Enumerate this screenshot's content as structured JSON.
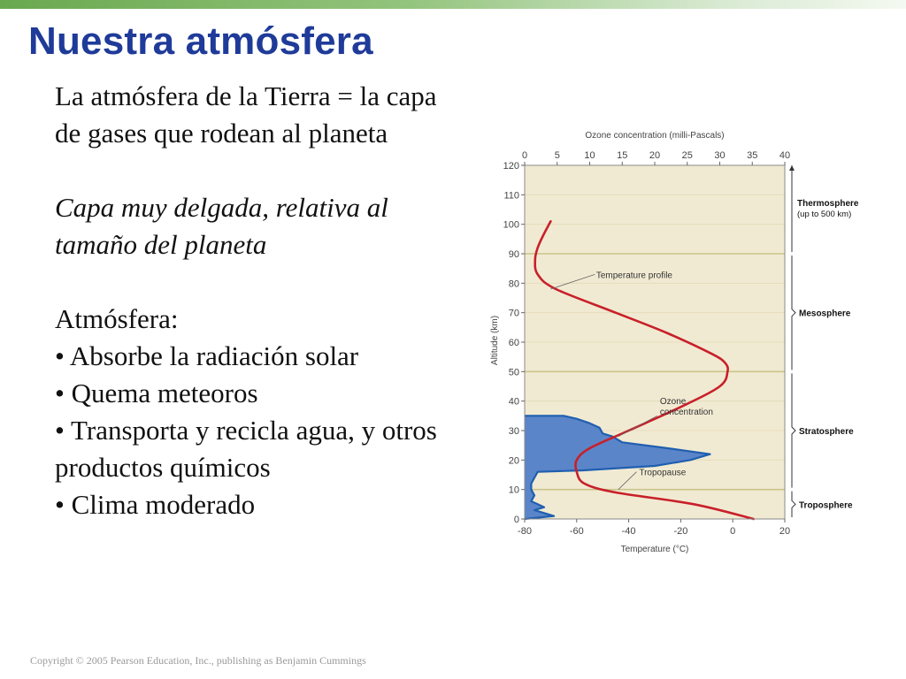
{
  "slide": {
    "title": "Nuestra atmósfera",
    "paragraph1": [
      "La atmósfera de la Tierra = la capa",
      "de gases que rodean al planeta"
    ],
    "paragraph2": [
      "Capa muy delgada, relativa al",
      "tamaño del planeta"
    ],
    "list_heading": "Atmósfera:",
    "bullets": [
      "• Absorbe la radiación solar",
      "• Quema meteoros",
      "• Transporta y recicla agua, y otros",
      "productos químicos",
      "• Clima moderado"
    ],
    "copyright": "Copyright © 2005 Pearson Education, Inc., publishing as Benjamin Cummings"
  },
  "colors": {
    "title": "#1f3b99",
    "temperature_profile": "#c8202a",
    "ozone_fill": "#5b85c9",
    "ozone_outline": "#1f5fb0",
    "plot_background": "#f1ead2",
    "layer_lines": "#c9c58a"
  },
  "chart_data": {
    "type": "line",
    "title": "",
    "top_axis": {
      "label": "Ozone concentration (milli-Pascals)",
      "ticks": [
        0,
        5,
        10,
        15,
        20,
        25,
        30,
        35,
        40
      ],
      "range": [
        0,
        40
      ]
    },
    "bottom_axis": {
      "label": "Temperature (°C)",
      "ticks": [
        -80,
        -60,
        -40,
        -20,
        0,
        20
      ],
      "range": [
        -80,
        20
      ]
    },
    "y_axis": {
      "label": "Altitude (km)",
      "ticks": [
        0,
        10,
        20,
        30,
        40,
        50,
        60,
        70,
        80,
        90,
        100,
        110,
        120
      ],
      "range": [
        0,
        120
      ]
    },
    "layer_boundaries_km": [
      10,
      50,
      90
    ],
    "layers": [
      {
        "name": "Troposphere",
        "sub": ""
      },
      {
        "name": "Stratosphere",
        "sub": ""
      },
      {
        "name": "Mesosphere",
        "sub": ""
      },
      {
        "name": "Thermosphere",
        "sub": "(up to 500 km)"
      }
    ],
    "series": [
      {
        "name": "Temperature profile",
        "axis": "temperature",
        "points": [
          [
            8,
            0
          ],
          [
            -15,
            5
          ],
          [
            -45,
            9
          ],
          [
            -57,
            12
          ],
          [
            -60,
            16
          ],
          [
            -60,
            20
          ],
          [
            -55,
            24
          ],
          [
            -40,
            30
          ],
          [
            -20,
            38
          ],
          [
            -5,
            45
          ],
          [
            -2,
            50
          ],
          [
            -3,
            53
          ],
          [
            -8,
            56
          ],
          [
            -25,
            63
          ],
          [
            -45,
            70
          ],
          [
            -68,
            78
          ],
          [
            -75,
            83
          ],
          [
            -76,
            88
          ],
          [
            -75,
            92
          ],
          [
            -73,
            96
          ],
          [
            -70,
            101
          ]
        ]
      },
      {
        "name": "Ozone concentration",
        "axis": "ozone",
        "points": [
          [
            0,
            0
          ],
          [
            4.5,
            1
          ],
          [
            3,
            2
          ],
          [
            1.5,
            3
          ],
          [
            3,
            4
          ],
          [
            2,
            5
          ],
          [
            1,
            6
          ],
          [
            1.5,
            8
          ],
          [
            1,
            10
          ],
          [
            1,
            12
          ],
          [
            1.5,
            14
          ],
          [
            2,
            16
          ],
          [
            9,
            16.5
          ],
          [
            20,
            18
          ],
          [
            25.5,
            20
          ],
          [
            28.5,
            22
          ],
          [
            22,
            24
          ],
          [
            15,
            26
          ],
          [
            13.5,
            28
          ],
          [
            12,
            29
          ],
          [
            11.5,
            31
          ],
          [
            10,
            32.5
          ],
          [
            8,
            34
          ],
          [
            6,
            35
          ],
          [
            0,
            35
          ]
        ]
      }
    ],
    "annotations": [
      {
        "text": "Temperature profile",
        "points_to": [
          -70,
          78
        ]
      },
      {
        "text": "Ozone concentration",
        "points_to": [
          -44,
          28
        ]
      },
      {
        "text": "Tropopause",
        "points_to": [
          -58,
          10
        ]
      }
    ]
  }
}
